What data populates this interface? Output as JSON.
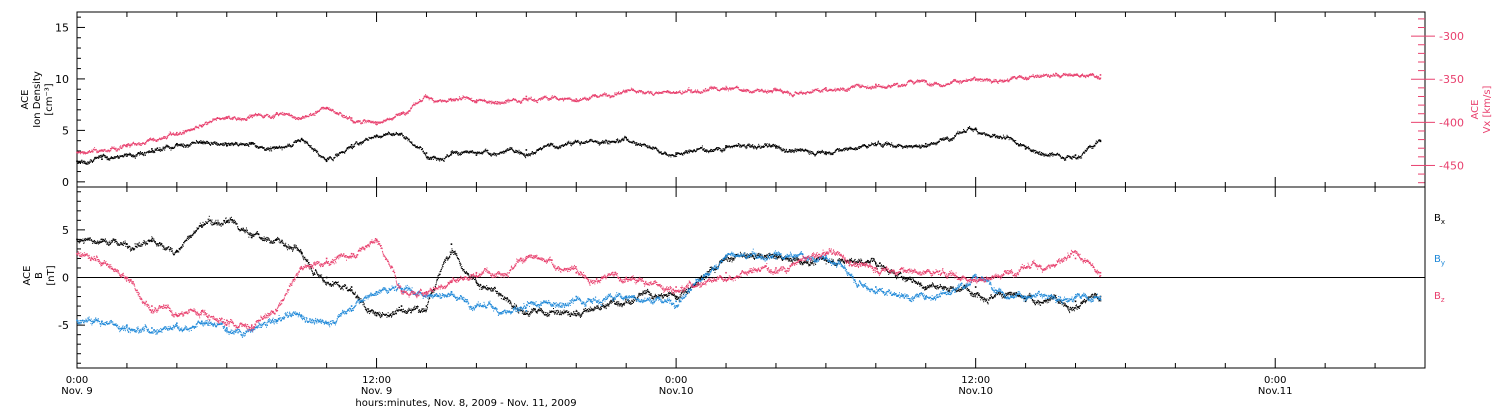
{
  "chart_data": [
    {
      "type": "scatter",
      "ylabel_lines": [
        "ACE",
        "Ion Density",
        "[cm⁻³]"
      ],
      "ylim": [
        -0.5,
        16.5
      ],
      "yticks": [
        0,
        5,
        10,
        15
      ],
      "y2label_lines": [
        "ACE",
        "Vx [km/s]"
      ],
      "y2lim": [
        -475,
        -272
      ],
      "y2ticks": [
        -300,
        -350,
        -400,
        -450
      ],
      "series": [
        {
          "color": "#e8406e",
          "axis": "right",
          "x": [
            0,
            1,
            2,
            3,
            4,
            5,
            6,
            7,
            8,
            9,
            10,
            11,
            12,
            13,
            14,
            15,
            16,
            18,
            20,
            22,
            24,
            26,
            28,
            30,
            32,
            34,
            36,
            38,
            40,
            41
          ],
          "y": [
            -435,
            -433,
            -428,
            -420,
            -412,
            -405,
            -395,
            -392,
            -389,
            -395,
            -383,
            -395,
            -400,
            -389,
            -371,
            -374,
            -377,
            -370,
            -373,
            -363,
            -366,
            -362,
            -363,
            -360,
            -356,
            -352,
            -351,
            -348,
            -345,
            -345
          ]
        },
        {
          "color": "#000000",
          "axis": "left",
          "x": [
            0,
            1,
            2,
            3,
            4,
            5,
            6,
            7,
            8,
            9,
            10,
            11,
            12,
            13,
            14,
            15,
            16,
            18,
            20,
            22,
            24,
            26,
            28,
            30,
            32,
            34,
            36,
            38,
            40,
            41
          ],
          "y": [
            2,
            2.2,
            2.5,
            3.2,
            3.7,
            3.8,
            3.5,
            3.8,
            3.3,
            4.2,
            2,
            3.6,
            4.5,
            4.7,
            2.8,
            2.9,
            2.6,
            3.1,
            3.9,
            4.3,
            2.8,
            3.5,
            3.3,
            2.9,
            3.6,
            3.7,
            5.2,
            3.2,
            2.6,
            4
          ]
        }
      ]
    },
    {
      "type": "scatter",
      "ylabel_lines": [
        "ACE",
        "B",
        "[nT]"
      ],
      "ylim": [
        -9.5,
        9.5
      ],
      "yticks": [
        -5,
        0,
        5
      ],
      "legend": "right",
      "series": [
        {
          "name": "Bx",
          "color": "#000000",
          "x": [
            0,
            1,
            2,
            3,
            4,
            5,
            6,
            7,
            8,
            9,
            10,
            11,
            12,
            13,
            14,
            15,
            16,
            18,
            20,
            22,
            24,
            26,
            28,
            30,
            32,
            34,
            36,
            38,
            40,
            41
          ],
          "y": [
            4,
            4,
            3.5,
            3.8,
            2.8,
            5.5,
            5.8,
            4.2,
            4,
            2.6,
            0,
            -1,
            -4,
            -3,
            -3,
            3.5,
            -0.5,
            -3.5,
            -4,
            -2,
            -2,
            2.3,
            2,
            2,
            1.5,
            -1,
            -1,
            -2.5,
            -2.5,
            -2
          ]
        },
        {
          "name": "By",
          "color": "#1e88d8",
          "x": [
            0,
            1,
            2,
            3,
            4,
            5,
            6,
            7,
            8,
            9,
            10,
            11,
            12,
            13,
            14,
            15,
            16,
            18,
            20,
            22,
            24,
            26,
            28,
            30,
            32,
            34,
            36,
            38,
            40,
            41
          ],
          "y": [
            -4.5,
            -4.6,
            -5,
            -5.3,
            -4.8,
            -4.6,
            -5.3,
            -5.5,
            -4.5,
            -4,
            -4.8,
            -3,
            -1.5,
            -1.2,
            -1.6,
            -1.5,
            -3,
            -3.5,
            -2,
            -2,
            -2.5,
            2.3,
            2,
            2.1,
            -1,
            -2,
            0,
            -2,
            -2,
            -2.3
          ]
        },
        {
          "name": "Bz",
          "color": "#e8406e",
          "x": [
            0,
            1,
            2,
            3,
            4,
            5,
            6,
            7,
            8,
            9,
            10,
            11,
            12,
            13,
            14,
            15,
            16,
            18,
            20,
            22,
            24,
            26,
            28,
            30,
            32,
            34,
            36,
            38,
            40,
            41
          ],
          "y": [
            2.5,
            1.5,
            0,
            -3,
            -4,
            -3.5,
            -4.5,
            -5,
            -3.5,
            1,
            2,
            2.5,
            4,
            -1.5,
            -1.5,
            -0.5,
            0.5,
            2,
            0.5,
            0,
            -1,
            0.5,
            1,
            2.5,
            1,
            0.5,
            0,
            1,
            2,
            0.5
          ]
        }
      ]
    }
  ],
  "time_axis": {
    "xlim_hours": [
      0,
      54
    ],
    "major_ticks": [
      {
        "hour": 0,
        "time": "0:00",
        "date": "Nov. 9"
      },
      {
        "hour": 12,
        "time": "12:00",
        "date": "Nov. 9"
      },
      {
        "hour": 24,
        "time": "0:00",
        "date": "Nov.10"
      },
      {
        "hour": 36,
        "time": "12:00",
        "date": "Nov.10"
      },
      {
        "hour": 48,
        "time": "0:00",
        "date": "Nov.11"
      }
    ],
    "title": "hours:minutes, Nov. 8, 2009 - Nov. 11, 2009"
  }
}
